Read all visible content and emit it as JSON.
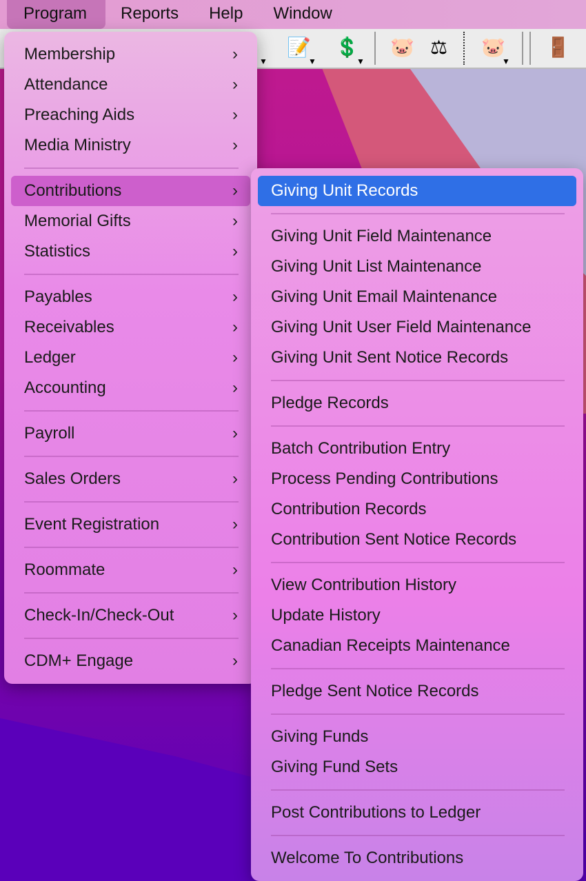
{
  "menubar": {
    "items": [
      "Program",
      "Reports",
      "Help",
      "Window"
    ],
    "active": "Program"
  },
  "toolbar": {
    "icons": [
      "document-pen-icon",
      "money-pen-icon",
      "piggy-bank-icon",
      "scales-icon",
      "piggy-bank-dropdown-icon",
      "exit-door-icon"
    ]
  },
  "program_menu": [
    {
      "label": "Membership",
      "sub": true
    },
    {
      "label": "Attendance",
      "sub": true
    },
    {
      "label": "Preaching Aids",
      "sub": true
    },
    {
      "label": "Media Ministry",
      "sub": true
    },
    {
      "sep": true
    },
    {
      "label": "Contributions",
      "sub": true,
      "state": "open"
    },
    {
      "label": "Memorial Gifts",
      "sub": true
    },
    {
      "label": "Statistics",
      "sub": true
    },
    {
      "sep": true
    },
    {
      "label": "Payables",
      "sub": true
    },
    {
      "label": "Receivables",
      "sub": true
    },
    {
      "label": "Ledger",
      "sub": true
    },
    {
      "label": "Accounting",
      "sub": true
    },
    {
      "sep": true
    },
    {
      "label": "Payroll",
      "sub": true
    },
    {
      "sep": true
    },
    {
      "label": "Sales Orders",
      "sub": true
    },
    {
      "sep": true
    },
    {
      "label": "Event Registration",
      "sub": true
    },
    {
      "sep": true
    },
    {
      "label": "Roommate",
      "sub": true
    },
    {
      "sep": true
    },
    {
      "label": "Check-In/Check-Out",
      "sub": true
    },
    {
      "sep": true
    },
    {
      "label": "CDM+ Engage",
      "sub": true
    }
  ],
  "contributions_menu": [
    {
      "label": "Giving Unit Records",
      "state": "selected"
    },
    {
      "sep": true
    },
    {
      "label": "Giving Unit Field Maintenance"
    },
    {
      "label": "Giving Unit List Maintenance"
    },
    {
      "label": "Giving Unit Email Maintenance"
    },
    {
      "label": "Giving Unit User Field Maintenance"
    },
    {
      "label": "Giving Unit Sent Notice Records"
    },
    {
      "sep": true
    },
    {
      "label": "Pledge Records"
    },
    {
      "sep": true
    },
    {
      "label": "Batch Contribution Entry"
    },
    {
      "label": "Process Pending Contributions"
    },
    {
      "label": "Contribution Records"
    },
    {
      "label": "Contribution Sent Notice Records"
    },
    {
      "sep": true
    },
    {
      "label": "View Contribution History"
    },
    {
      "label": "Update History"
    },
    {
      "label": "Canadian Receipts Maintenance"
    },
    {
      "sep": true
    },
    {
      "label": "Pledge Sent Notice Records"
    },
    {
      "sep": true
    },
    {
      "label": "Giving Funds"
    },
    {
      "label": "Giving Fund Sets"
    },
    {
      "sep": true
    },
    {
      "label": "Post Contributions to Ledger"
    },
    {
      "sep": true
    },
    {
      "label": "Welcome To Contributions"
    }
  ],
  "colors": {
    "selected": "#2f6fe6",
    "open_item": "#cd5fcc"
  },
  "chevron": "›"
}
